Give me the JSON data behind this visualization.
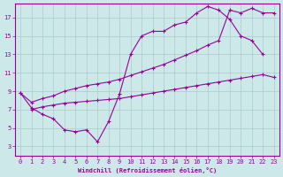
{
  "xlabel": "Windchill (Refroidissement éolien,°C)",
  "bg_color": "#cce8e8",
  "grid_color": "#aacccc",
  "line_color": "#990099",
  "xlim": [
    -0.5,
    23.5
  ],
  "ylim": [
    2.0,
    18.5
  ],
  "xticks": [
    0,
    1,
    2,
    3,
    4,
    5,
    6,
    7,
    8,
    9,
    10,
    11,
    12,
    13,
    14,
    15,
    16,
    17,
    18,
    19,
    20,
    21,
    22,
    23
  ],
  "yticks": [
    3,
    5,
    7,
    9,
    11,
    13,
    15,
    17
  ],
  "line1_x": [
    0,
    1,
    2,
    3,
    4,
    5,
    6,
    7,
    8,
    9,
    10,
    11,
    12,
    13,
    14,
    15,
    16,
    17,
    18,
    19,
    20,
    21,
    22
  ],
  "line1_y": [
    8.8,
    7.2,
    6.5,
    6.0,
    4.8,
    4.6,
    4.8,
    3.5,
    5.7,
    8.7,
    13.0,
    15.0,
    15.5,
    15.5,
    16.2,
    16.5,
    17.5,
    18.2,
    17.8,
    16.8,
    15.0,
    14.5,
    13.0
  ],
  "line2_x": [
    0,
    1,
    2,
    3,
    4,
    5,
    6,
    7,
    8,
    9,
    10,
    11,
    12,
    13,
    14,
    15,
    16,
    17,
    18,
    19,
    20,
    21,
    22,
    23
  ],
  "line2_y": [
    8.8,
    7.8,
    8.2,
    8.5,
    9.0,
    9.3,
    9.6,
    9.8,
    10.0,
    10.3,
    10.7,
    11.1,
    11.5,
    11.9,
    12.4,
    12.9,
    13.4,
    14.0,
    14.5,
    17.8,
    17.5,
    18.0,
    17.5,
    17.5
  ],
  "line3_x": [
    1,
    2,
    3,
    4,
    5,
    6,
    7,
    8,
    9,
    10,
    11,
    12,
    13,
    14,
    15,
    16,
    17,
    18,
    19,
    20,
    21,
    22,
    23
  ],
  "line3_y": [
    7.0,
    7.3,
    7.5,
    7.7,
    7.8,
    7.9,
    8.0,
    8.1,
    8.2,
    8.4,
    8.6,
    8.8,
    9.0,
    9.2,
    9.4,
    9.6,
    9.8,
    10.0,
    10.2,
    10.4,
    10.6,
    10.8,
    10.5
  ]
}
